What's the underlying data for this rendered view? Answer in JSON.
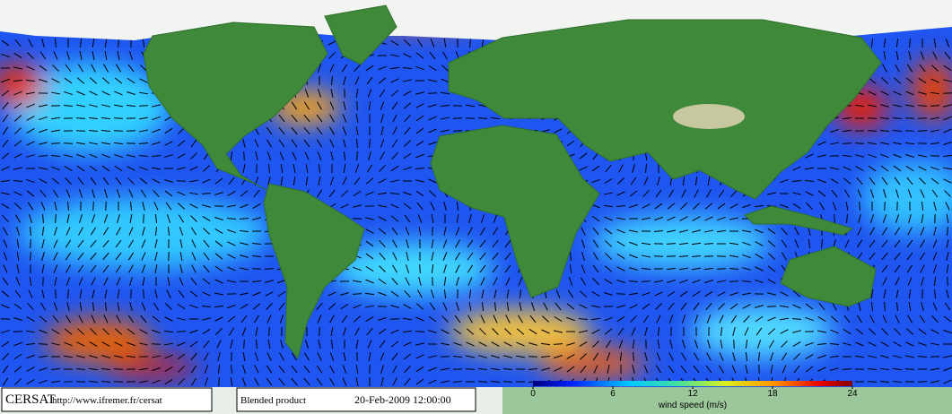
{
  "footer": {
    "logo": "CERSAT",
    "url": "http://www.ifremer.fr/cersat",
    "product": "Blended product",
    "date": "20-Feb-2009 12:00:00"
  },
  "colorbar": {
    "label": "wind speed (m/s)",
    "range": [
      0,
      24
    ],
    "ticks": [
      0,
      6,
      12,
      18,
      24
    ]
  }
}
